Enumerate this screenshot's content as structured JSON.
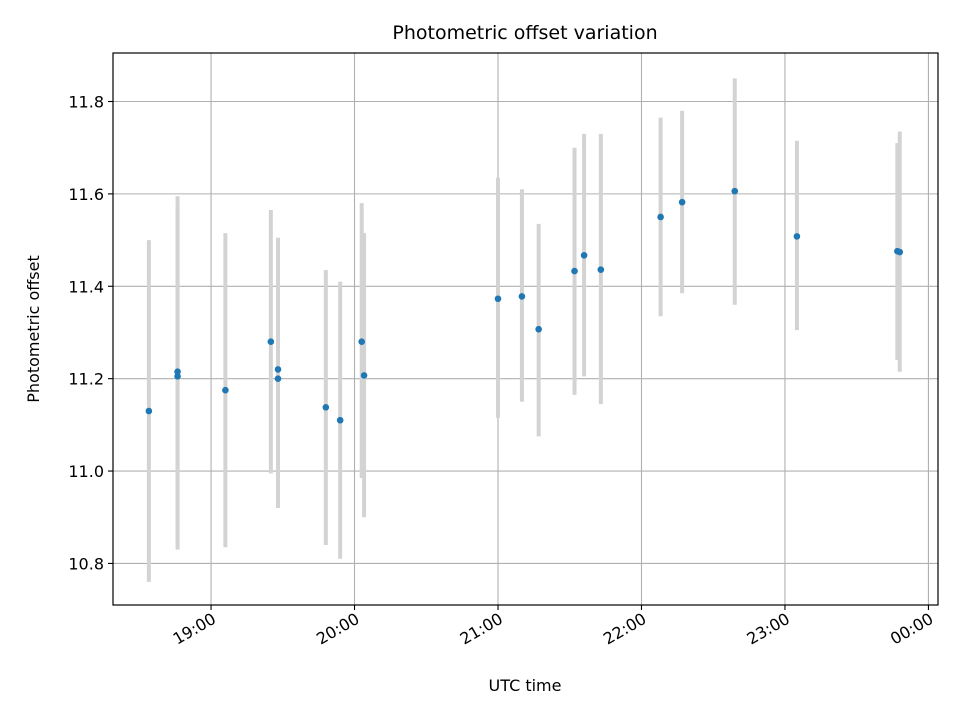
{
  "chart_data": {
    "type": "scatter",
    "title": "Photometric offset variation",
    "xlabel": "UTC time",
    "ylabel": "Photometric offset",
    "grid": true,
    "xlim": [
      "18:19",
      "00:04"
    ],
    "ylim": [
      10.71,
      11.905
    ],
    "xticks": [
      "19:00",
      "20:00",
      "21:00",
      "22:00",
      "23:00",
      "00:00"
    ],
    "yticks": [
      "10.8",
      "11.0",
      "11.2",
      "11.4",
      "11.6",
      "11.8"
    ],
    "series": [
      {
        "marker_color": "#1f77b4",
        "errorbar_color": "#d3d3d3",
        "points": [
          {
            "t": "18:34",
            "y": 11.13,
            "yerr_low": 10.76,
            "yerr_high": 11.5
          },
          {
            "t": "18:46",
            "y": 11.205,
            "yerr_low": 10.84,
            "yerr_high": 11.57
          },
          {
            "t": "18:46",
            "y": 11.215,
            "yerr_low": 10.83,
            "yerr_high": 11.595
          },
          {
            "t": "19:06",
            "y": 11.175,
            "yerr_low": 10.835,
            "yerr_high": 11.515
          },
          {
            "t": "19:25",
            "y": 11.28,
            "yerr_low": 10.995,
            "yerr_high": 11.565
          },
          {
            "t": "19:28",
            "y": 11.22,
            "yerr_low": 10.935,
            "yerr_high": 11.505
          },
          {
            "t": "19:28",
            "y": 11.2,
            "yerr_low": 10.92,
            "yerr_high": 11.48
          },
          {
            "t": "19:48",
            "y": 11.138,
            "yerr_low": 10.84,
            "yerr_high": 11.435
          },
          {
            "t": "19:54",
            "y": 11.11,
            "yerr_low": 10.81,
            "yerr_high": 11.41
          },
          {
            "t": "20:03",
            "y": 11.28,
            "yerr_low": 10.985,
            "yerr_high": 11.58
          },
          {
            "t": "20:04",
            "y": 11.207,
            "yerr_low": 10.9,
            "yerr_high": 11.515
          },
          {
            "t": "21:00",
            "y": 11.373,
            "yerr_low": 11.115,
            "yerr_high": 11.635
          },
          {
            "t": "21:10",
            "y": 11.378,
            "yerr_low": 11.15,
            "yerr_high": 11.61
          },
          {
            "t": "21:17",
            "y": 11.307,
            "yerr_low": 11.075,
            "yerr_high": 11.535
          },
          {
            "t": "21:32",
            "y": 11.433,
            "yerr_low": 11.165,
            "yerr_high": 11.7
          },
          {
            "t": "21:36",
            "y": 11.467,
            "yerr_low": 11.205,
            "yerr_high": 11.73
          },
          {
            "t": "21:43",
            "y": 11.436,
            "yerr_low": 11.145,
            "yerr_high": 11.73
          },
          {
            "t": "22:08",
            "y": 11.55,
            "yerr_low": 11.335,
            "yerr_high": 11.765
          },
          {
            "t": "22:17",
            "y": 11.582,
            "yerr_low": 11.385,
            "yerr_high": 11.78
          },
          {
            "t": "22:39",
            "y": 11.606,
            "yerr_low": 11.36,
            "yerr_high": 11.85
          },
          {
            "t": "23:05",
            "y": 11.508,
            "yerr_low": 11.305,
            "yerr_high": 11.715
          },
          {
            "t": "23:47",
            "y": 11.476,
            "yerr_low": 11.24,
            "yerr_high": 11.71
          },
          {
            "t": "23:48",
            "y": 11.474,
            "yerr_low": 11.215,
            "yerr_high": 11.735
          }
        ]
      }
    ]
  }
}
